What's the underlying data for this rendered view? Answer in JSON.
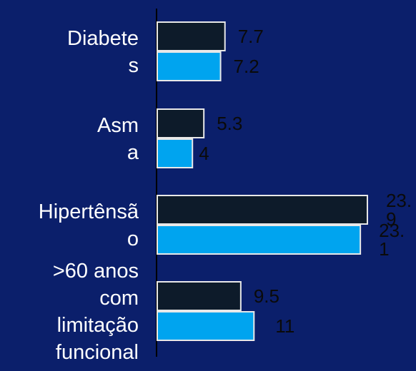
{
  "chart_data": {
    "type": "bar",
    "orientation": "horizontal",
    "categories": [
      [
        "Diabete",
        "s"
      ],
      [
        "Asm",
        "a"
      ],
      [
        "Hipertênsã",
        "o"
      ],
      [
        ">60 anos",
        "com",
        "limitação",
        "funcional"
      ]
    ],
    "series": [
      {
        "values": [
          7.7,
          5.3,
          23.9,
          9.5
        ],
        "color": "#0d1b2a",
        "data_labels": [
          [
            "7.7"
          ],
          [
            "5.3"
          ],
          [
            "23.",
            "9"
          ],
          [
            "9.5"
          ]
        ]
      },
      {
        "values": [
          7.2,
          4,
          23.1,
          11
        ],
        "color": "#00a4ef",
        "data_labels": [
          [
            "7.2"
          ],
          [
            "4"
          ],
          [
            "23.",
            "1"
          ],
          [
            "11"
          ]
        ]
      }
    ],
    "xlim": [
      0,
      28
    ],
    "grid": false,
    "legend": "none",
    "title": "",
    "xlabel": "",
    "ylabel": ""
  },
  "colors": {
    "background": "#0b1f6b",
    "axis": "#000000",
    "bar_border": "#e8e8e8"
  }
}
